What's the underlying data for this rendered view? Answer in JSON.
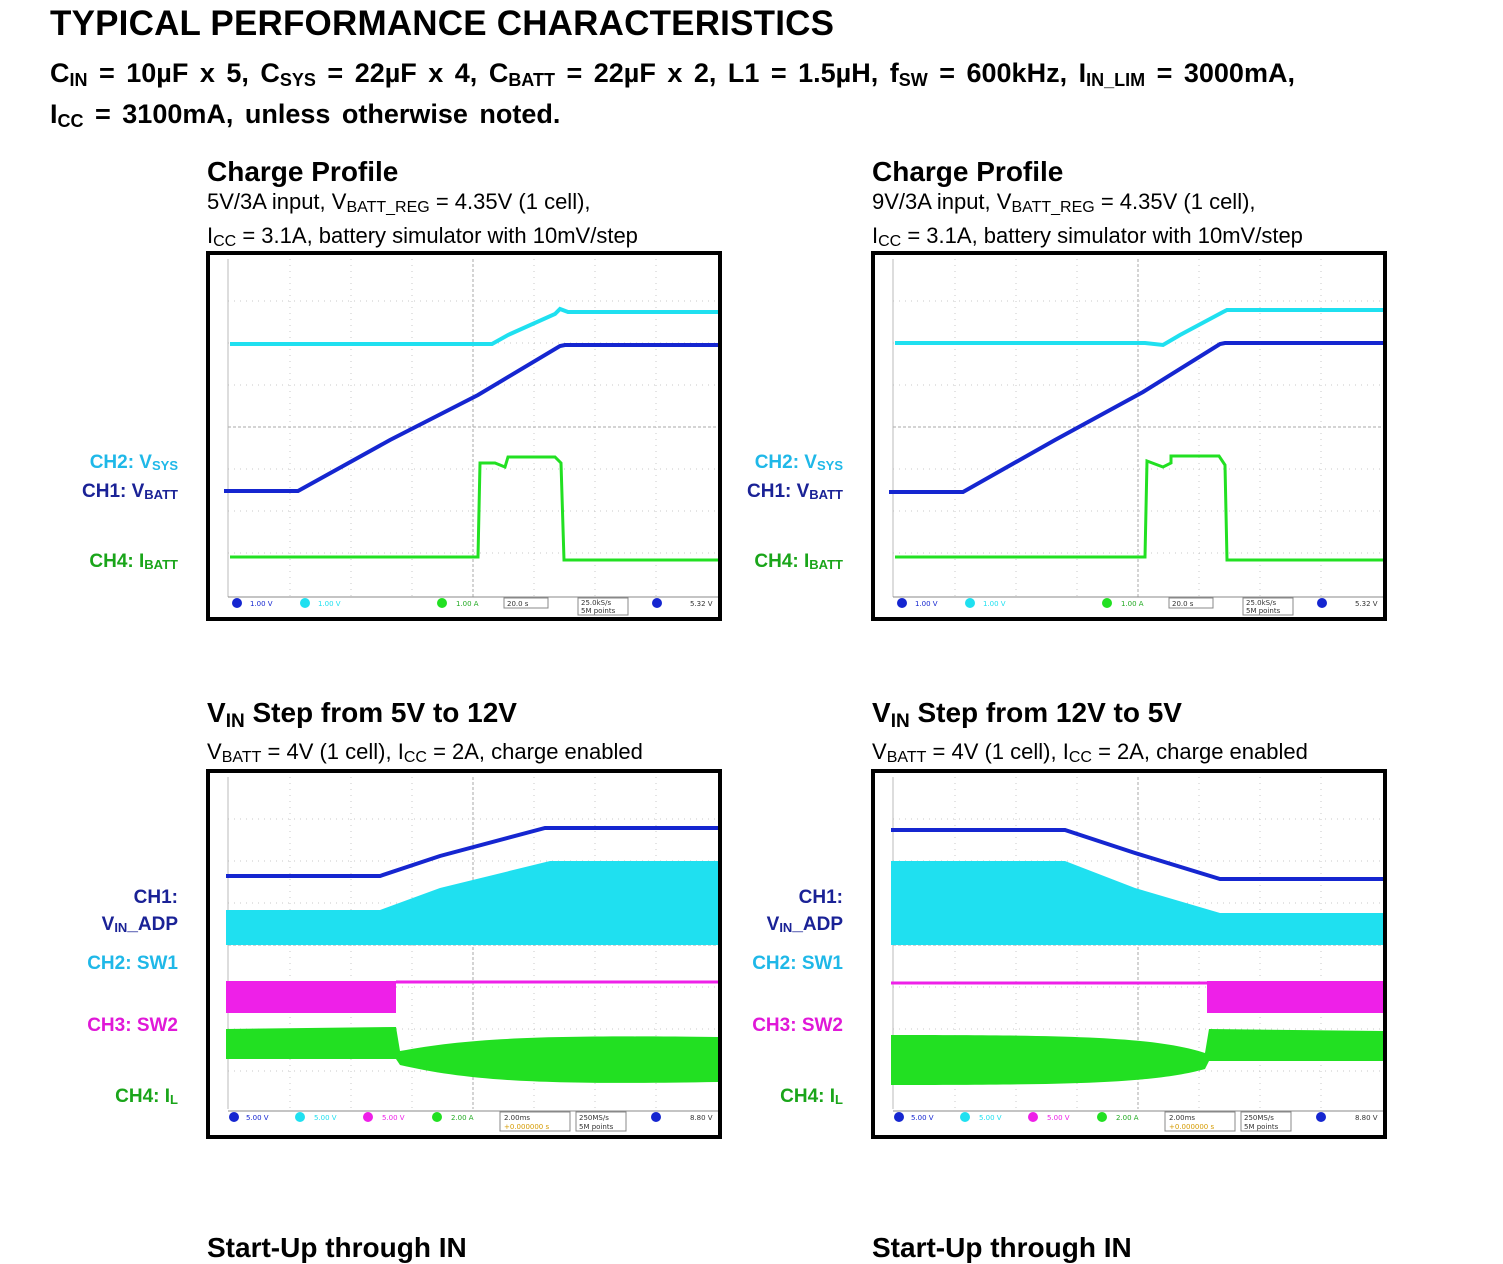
{
  "header": {
    "title": "TYPICAL PERFORMANCE CHARACTERISTICS",
    "cond_cin_label": "C",
    "cond_cin_sub": "IN",
    "cond_cin_val": " = 10µF x 5, ",
    "cond_csys_label": "C",
    "cond_csys_sub": "SYS",
    "cond_csys_val": " = 22µF x 4, ",
    "cond_cbatt_label": "C",
    "cond_cbatt_sub": "BATT",
    "cond_cbatt_val": " = 22µF x 2, L1 = 1.5µH, ",
    "cond_fsw_label": "f",
    "cond_fsw_sub": "SW",
    "cond_fsw_val": " = 600kHz, ",
    "cond_ilim_label": "I",
    "cond_ilim_sub": "IN_LIM",
    "cond_ilim_val": " = 3000mA,",
    "cond_icc_label": "I",
    "cond_icc_sub": "CC",
    "cond_icc_val": " = 3100mA, unless otherwise noted."
  },
  "charts": {
    "c1": {
      "title": "Charge Profile",
      "sub1_pre": "5V/3A input, V",
      "sub1_sub": "BATT_REG",
      "sub1_post": " = 4.35V (1 cell),",
      "sub2_pre": "I",
      "sub2_sub": "CC",
      "sub2_post": " = 3.1A, battery simulator with 10mV/step"
    },
    "c2": {
      "title": "Charge Profile",
      "sub1_pre": "9V/3A input, V",
      "sub1_sub": "BATT_REG",
      "sub1_post": " = 4.35V (1 cell),",
      "sub2_pre": "I",
      "sub2_sub": "CC",
      "sub2_post": " = 3.1A, battery simulator with 10mV/step"
    },
    "c3": {
      "title_pre": "V",
      "title_sub": "IN",
      "title_post": " Step from 5V to 12V",
      "sub_pre": "V",
      "sub_sub": "BATT",
      "sub_mid": " = 4V (1 cell), I",
      "sub_sub2": "CC",
      "sub_post": " = 2A, charge enabled"
    },
    "c4": {
      "title_pre": "V",
      "title_sub": "IN",
      "title_post": " Step from 12V to 5V",
      "sub_pre": "V",
      "sub_sub": "BATT",
      "sub_mid": " = 4V (1 cell), I",
      "sub_sub2": "CC",
      "sub_post": " = 2A, charge enabled"
    },
    "c5": {
      "title": "Start-Up through IN"
    },
    "c6": {
      "title": "Start-Up through IN"
    }
  },
  "labels": {
    "ch2_pre": "CH2: V",
    "ch2_sub": "SYS",
    "ch1_pre": "CH1: V",
    "ch1_sub": "BATT",
    "ch4_pre": "CH4: I",
    "ch4_sub": "BATT",
    "ch1_adp_a": "CH1:",
    "ch1_adp_pre": "V",
    "ch1_adp_sub": "IN",
    "ch1_adp_post": "_ADP",
    "ch2_sw1": "CH2: SW1",
    "ch3_sw2": "CH3: SW2",
    "ch4_il_pre": "CH4: I",
    "ch4_il_sub": "L"
  },
  "scope_status": {
    "top": {
      "ch1": "1.00 V",
      "ch2": "1.00 V",
      "ch4": "1.00 A",
      "time": "20.0 s",
      "rate": "25.0kS/s",
      "pts": "5M points",
      "trig": "5.32 V"
    },
    "bottom": {
      "ch1": "5.00 V",
      "ch2": "5.00 V",
      "ch3": "5.00 V",
      "ch4": "2.00 A",
      "time": "2.00ms",
      "offset": "+0.000000 s",
      "rate": "250MS/s",
      "pts": "5M points",
      "trig": "8.80 V"
    }
  },
  "colors": {
    "vsys": "#1fe0f0",
    "vbatt": "#1526d0",
    "ibatt": "#22e022",
    "sw2": "#ee20e8",
    "label_sys": "#1fb8e8",
    "label_batt": "#1a2296",
    "label_ib": "#1aa51a",
    "label_sw2": "#e018d8"
  }
}
